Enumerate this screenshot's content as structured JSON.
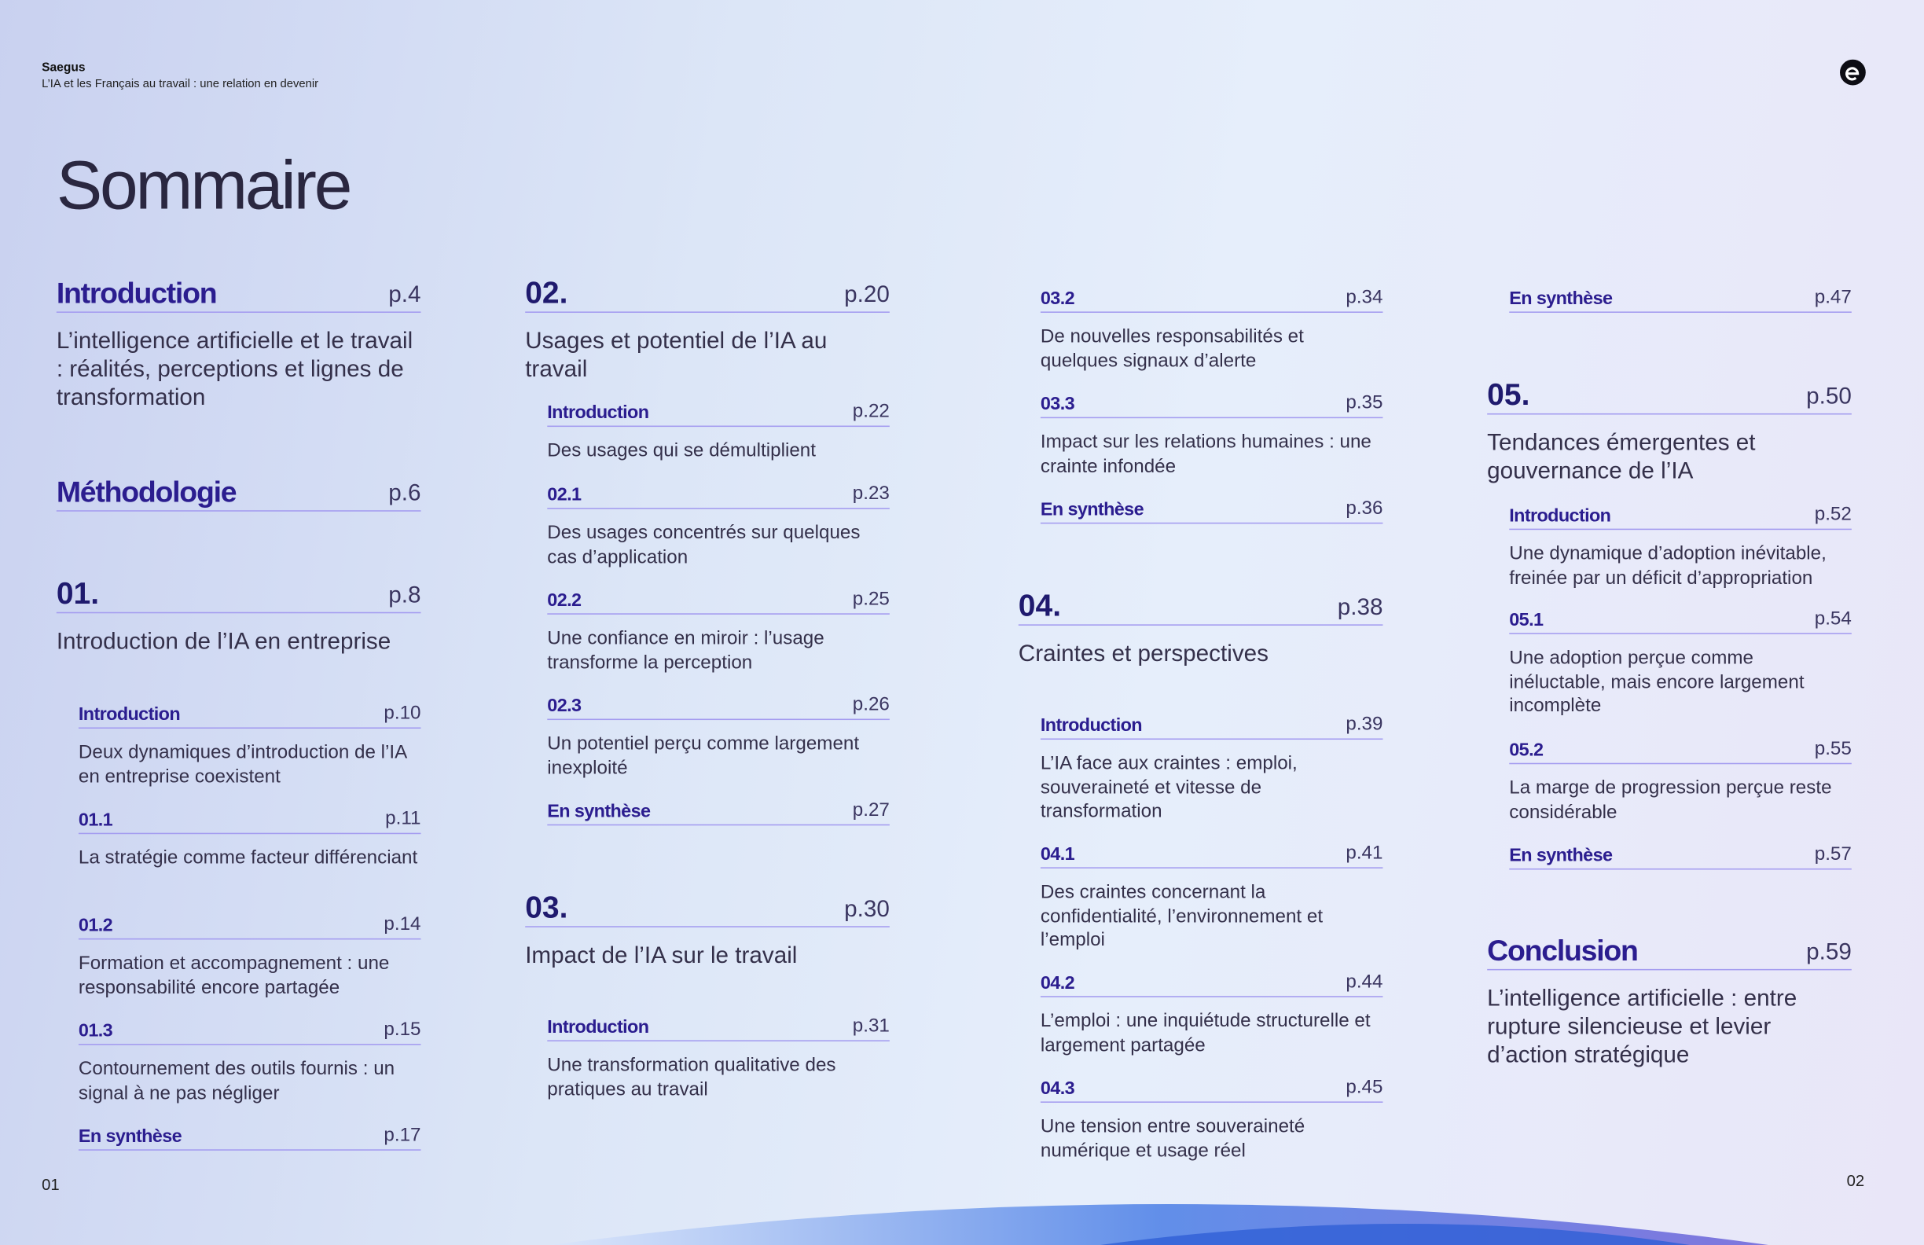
{
  "header": {
    "brand": "Saegus",
    "subtitle": "L’IA et les Français au travail : une relation en devenir"
  },
  "title": "Sommaire",
  "page_left": "01",
  "page_right": "02",
  "columns": [
    {
      "entries": [
        {
          "label": "Introduction",
          "page": "p.4",
          "description": "L’intelligence artificielle et le travail : réalités, perceptions et lignes de transformation"
        },
        {
          "label": "Méthodologie",
          "page": "p.6"
        },
        {
          "label": "01.",
          "page": "p.8",
          "description": "Introduction de l’IA en entreprise"
        },
        {
          "label": "Introduction",
          "page": "p.10",
          "description": "Deux dynamiques d’introduction de l’IA en entreprise coexistent"
        },
        {
          "label": "01.1",
          "page": "p.11",
          "description": "La stratégie comme facteur différenciant"
        },
        {
          "label": "01.2",
          "page": "p.14",
          "description": "Formation et accompagnement : une responsabilité encore partagée"
        },
        {
          "label": "01.3",
          "page": "p.15",
          "description": "Contournement des outils fournis : un signal à ne pas négliger"
        },
        {
          "label": "En synthèse",
          "page": "p.17"
        }
      ]
    },
    {
      "entries": [
        {
          "label": "02.",
          "page": "p.20",
          "description": "Usages et potentiel de l’IA au travail"
        },
        {
          "label": "Introduction",
          "page": "p.22",
          "description": "Des usages qui se démultiplient"
        },
        {
          "label": "02.1",
          "page": "p.23",
          "description": "Des usages concentrés sur quelques cas d’application"
        },
        {
          "label": "02.2",
          "page": "p.25",
          "description": "Une confiance en miroir : l’usage transforme la perception"
        },
        {
          "label": "02.3",
          "page": "p.26",
          "description": "Un potentiel perçu comme largement inexploité"
        },
        {
          "label": "En synthèse",
          "page": "p.27"
        },
        {
          "label": "03.",
          "page": "p.30",
          "description": "Impact de l’IA sur le travail"
        },
        {
          "label": "Introduction",
          "page": "p.31",
          "description": "Une transformation qualitative des pratiques au travail"
        }
      ]
    },
    {
      "entries": [
        {
          "label": "03.2",
          "page": "p.34",
          "description": "De nouvelles responsabilités et quelques signaux d’alerte"
        },
        {
          "label": "03.3",
          "page": "p.35",
          "description": "Impact sur les relations humaines : une crainte infondée"
        },
        {
          "label": "En synthèse",
          "page": "p.36"
        },
        {
          "label": "04.",
          "page": "p.38",
          "description": "Craintes et perspectives"
        },
        {
          "label": "Introduction",
          "page": "p.39",
          "description": "L’IA face aux craintes : emploi, souveraineté et vitesse de transformation"
        },
        {
          "label": "04.1",
          "page": "p.41",
          "description": "Des craintes concernant la confidentialité, l’environnement et l’emploi"
        },
        {
          "label": "04.2",
          "page": "p.44",
          "description": "L’emploi : une inquiétude structurelle et largement partagée"
        },
        {
          "label": "04.3",
          "page": "p.45",
          "description": "Une tension entre souveraineté numérique et usage réel"
        }
      ]
    },
    {
      "entries": [
        {
          "label": "En synthèse",
          "page": "p.47"
        },
        {
          "label": "05.",
          "page": "p.50",
          "description": "Tendances émergentes et gouvernance de l’IA"
        },
        {
          "label": "Introduction",
          "page": "p.52",
          "description": "Une dynamique d’adoption inévitable, freinée par un déficit d’appropriation"
        },
        {
          "label": "05.1",
          "page": "p.54",
          "description": "Une adoption perçue comme inéluctable, mais encore largement incomplète"
        },
        {
          "label": "05.2",
          "page": "p.55",
          "description": "La marge de progression perçue reste considérable"
        },
        {
          "label": "En synthèse",
          "page": "p.57"
        },
        {
          "label": "Conclusion",
          "page": "p.59",
          "description": "L’intelligence artificielle : entre rupture silencieuse et levier d’action stratégique"
        }
      ]
    }
  ]
}
